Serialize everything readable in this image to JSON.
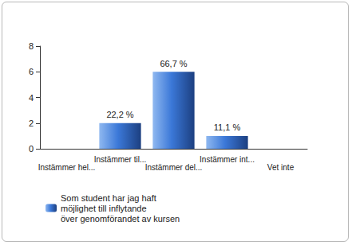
{
  "chart_data": {
    "type": "bar",
    "categories": [
      "Instämmer hel...",
      "Instämmer til...",
      "Instämmer del...",
      "Instämmer int...",
      "Vet inte"
    ],
    "series": [
      {
        "name": "Som student har jag haft\nmöjlighet till inflytande\növer genomförandet av kursen",
        "color": "#3b78d8",
        "values": [
          0,
          2,
          6,
          1,
          0
        ]
      }
    ],
    "annotations": [
      {
        "x": "Instämmer til...",
        "text": "22,2 %"
      },
      {
        "x": "Instämmer del...",
        "text": "66,7 %"
      },
      {
        "x": "Instämmer int...",
        "text": "11,1 %"
      }
    ],
    "ylim": [
      0,
      8
    ],
    "yticks": [
      0,
      2,
      4,
      6,
      8
    ],
    "grid": false,
    "legend": "bottom-left"
  }
}
